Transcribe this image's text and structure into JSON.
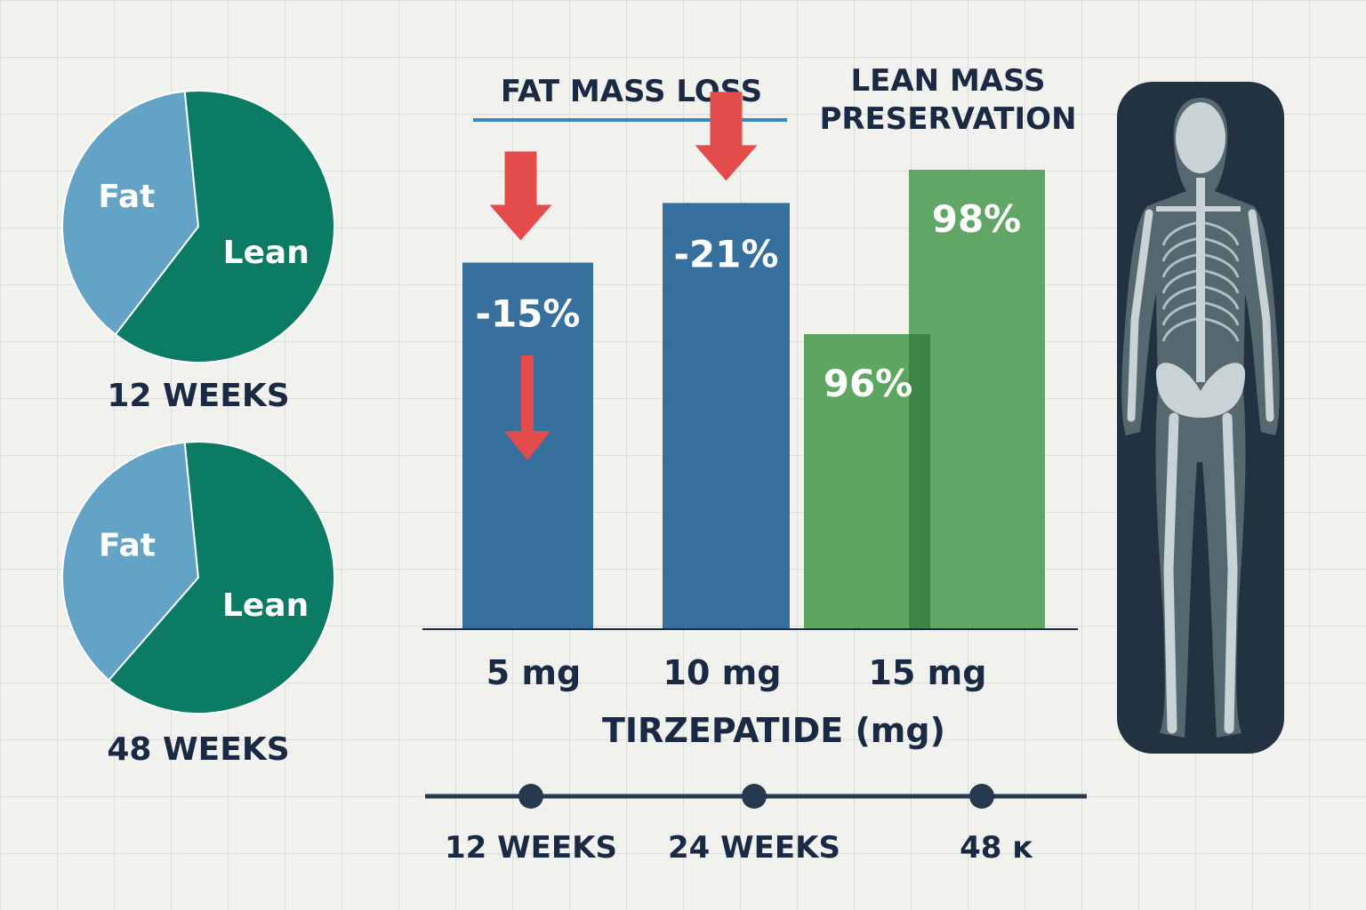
{
  "chart_data": [
    {
      "type": "pie",
      "label": "12 WEEKS",
      "slices": [
        {
          "name": "Fat",
          "value": 38,
          "color": "#62a3c6"
        },
        {
          "name": "Lean",
          "value": 62,
          "color": "#0b7b64"
        }
      ]
    },
    {
      "type": "pie",
      "label": "48 WEEKS",
      "slices": [
        {
          "name": "Fat",
          "value": 37,
          "color": "#62a3c6"
        },
        {
          "name": "Lean",
          "value": 63,
          "color": "#0b7b64"
        }
      ]
    },
    {
      "type": "bar",
      "xlabel": "TIRZEPATIDE (mg)",
      "categories": [
        "5 mg",
        "10 mg",
        "15 mg"
      ],
      "groups": [
        {
          "title": "FAT MASS LOSS",
          "color": "#376f9d",
          "arrow_color": "#e44c4c",
          "bars": [
            {
              "category": "5 mg",
              "value": -15,
              "label": "-15%"
            },
            {
              "category": "10 mg",
              "value": -21,
              "label": "-21%"
            }
          ]
        },
        {
          "title_lines": [
            "LEAN MASS",
            "PRESERVATION"
          ],
          "color": "#55a05a",
          "bars": [
            {
              "category": "15 mg",
              "value": 96,
              "label": "96%"
            },
            {
              "category": "15 mg",
              "value": 98,
              "label": "98%"
            }
          ]
        }
      ]
    }
  ],
  "timeline": {
    "points": [
      "12 WEEKS",
      "24 WEEKS",
      "48 ᴋ"
    ],
    "color": "#26394f"
  },
  "body_scan": {
    "icon": "skeleton-scan-icon",
    "bg": "#233241"
  }
}
